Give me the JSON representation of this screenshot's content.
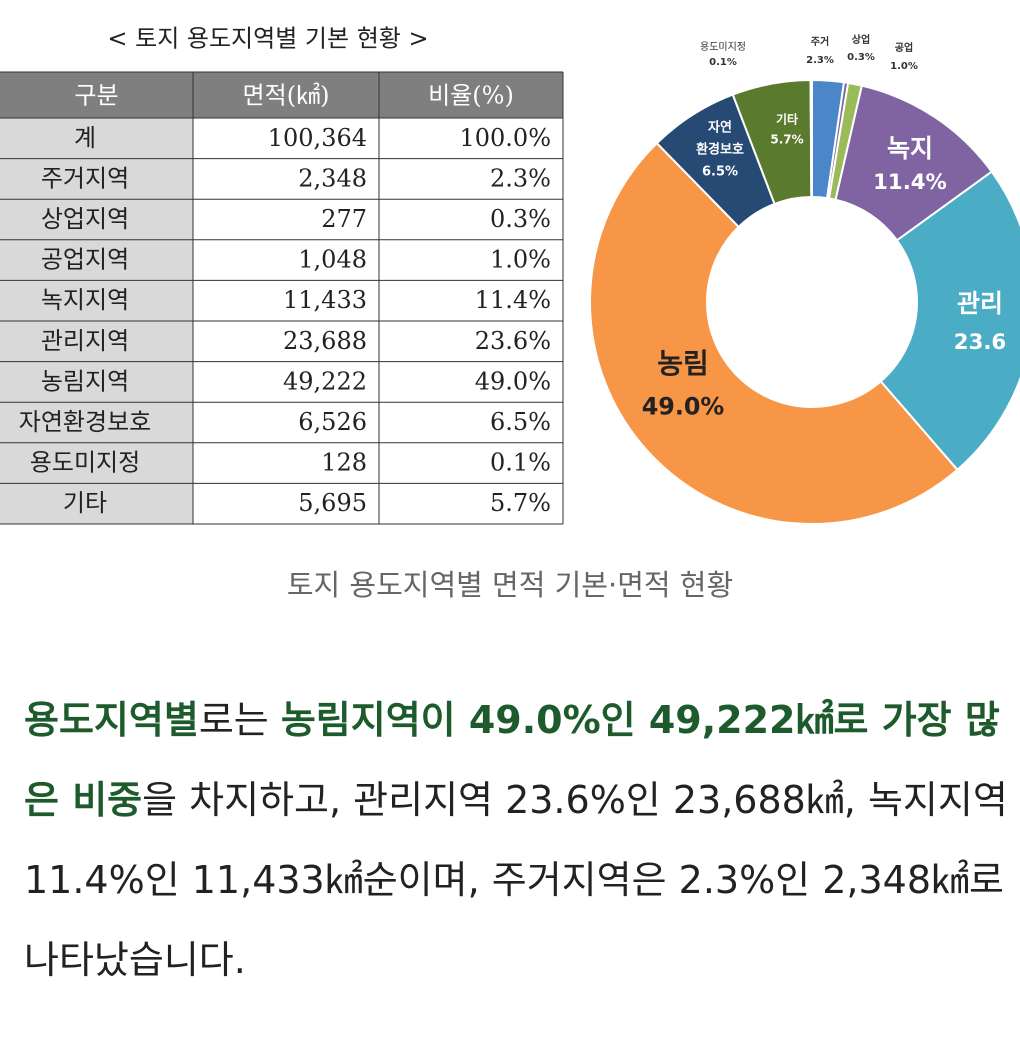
{
  "figure": {
    "table": {
      "title": "< 토지 용도지역별 기본 현황 >",
      "header": [
        "구분",
        "면적(㎢)",
        "비율(%)"
      ],
      "rows": [
        [
          "계",
          "100,364",
          "100.0%"
        ],
        [
          "주거지역",
          "2,348",
          "2.3%"
        ],
        [
          "상업지역",
          "277",
          "0.3%"
        ],
        [
          "공업지역",
          "1,048",
          "1.0%"
        ],
        [
          "녹지지역",
          "11,433",
          "11.4%"
        ],
        [
          "관리지역",
          "23,688",
          "23.6%"
        ],
        [
          "농림지역",
          "49,222",
          "49.0%"
        ],
        [
          "자연환경보호",
          "6,526",
          "6.5%"
        ],
        [
          "용도미지정",
          "128",
          "0.1%"
        ],
        [
          "기타",
          "5,695",
          "5.7%"
        ]
      ]
    },
    "donut": {
      "type": "pie",
      "categories": [
        [
          "주거"
        ],
        [
          "상업"
        ],
        [
          "공업"
        ],
        [
          "녹지"
        ],
        [
          "관리"
        ],
        [
          "농림"
        ],
        [
          "자연",
          "환경보호"
        ],
        [
          "기타"
        ],
        [
          "용도미지정"
        ]
      ],
      "values": [
        2.3,
        0.3,
        1.0,
        11.4,
        23.6,
        49.0,
        6.5,
        5.7,
        0.1
      ],
      "value_labels": [
        "2.3%",
        "0.3%",
        "1.0%",
        "11.4%",
        "23.6",
        "49.0%",
        "6.5%",
        "5.7%",
        "0.1%"
      ],
      "colors": [
        "#4a86c8",
        "#8064a2",
        "#9bbb59",
        "#8064a2",
        "#4bacc6",
        "#f79646",
        "#264a74",
        "#5a7a2e",
        "#c9c9c9"
      ]
    },
    "caption": "토지 용도지역별 면적 기본·면적 현황"
  },
  "article": {
    "paragraph": [
      {
        "text": "용도지역별",
        "emphasis": true
      },
      {
        "text": "로는 ",
        "emphasis": false
      },
      {
        "text": "농림지역이 49.0%인 49,222㎢로 가장 많은 비중",
        "emphasis": true
      },
      {
        "text": "을 차지하고, 관리지역 23.6%인 23,688㎢, 녹지지역 11.4%인 11,433㎢순이며, 주거지역은 2.3%인 2,348㎢로 나타났습니다.",
        "emphasis": false
      }
    ]
  }
}
